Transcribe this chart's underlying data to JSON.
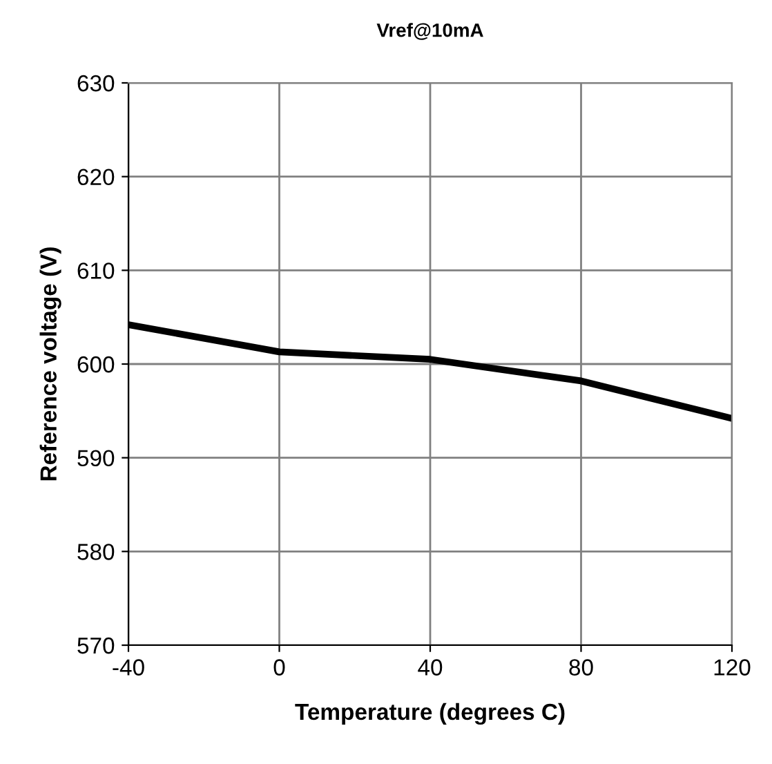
{
  "chart_data": {
    "type": "line",
    "title": "Vref@10mA",
    "xlabel": "Temperature (degrees C)",
    "ylabel": "Reference voltage (V)",
    "x": [
      -40,
      0,
      40,
      80,
      120
    ],
    "series": [
      {
        "color": "#000000",
        "values": [
          604.2,
          601.3,
          600.5,
          598.2,
          594.2
        ]
      }
    ],
    "xlim": [
      -40,
      120
    ],
    "xticks": [
      -40,
      0,
      40,
      80,
      120
    ],
    "ylim": [
      570,
      630
    ],
    "yticks": [
      570,
      580,
      590,
      600,
      610,
      620,
      630
    ],
    "grid": true,
    "legend": false,
    "marker": "none",
    "line_style": "solid"
  }
}
